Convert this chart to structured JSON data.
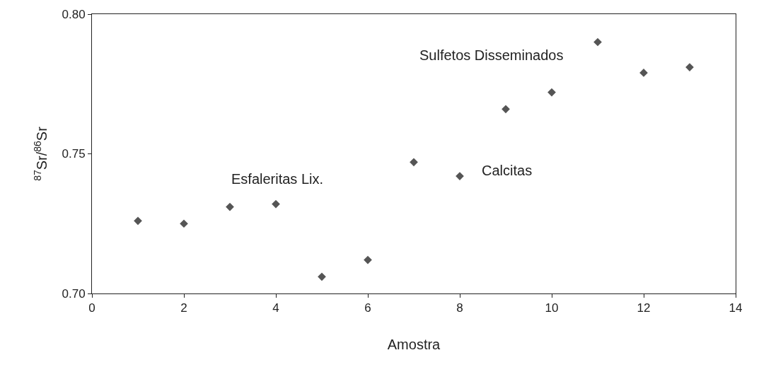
{
  "chart_data": {
    "type": "scatter",
    "xlabel": "Amostra",
    "ylabel": "$^{87}$Sr/$^{86}$Sr",
    "x": [
      1,
      2,
      3,
      4,
      5,
      6,
      7,
      8,
      9,
      10,
      11,
      12,
      13
    ],
    "series": [
      {
        "color": "#555555",
        "values": [
          0.726,
          0.725,
          0.731,
          0.732,
          0.706,
          0.712,
          0.747,
          0.742,
          0.766,
          0.772,
          0.79,
          0.779,
          0.781
        ]
      }
    ],
    "xlim": [
      0,
      14
    ],
    "xticks": [
      0,
      2,
      4,
      6,
      8,
      10,
      12,
      14
    ],
    "ylim": [
      0.7,
      0.8
    ],
    "yticks": [
      {
        "value": 0.7,
        "label": "0.70"
      },
      {
        "value": 0.75,
        "label": "0.75"
      },
      {
        "value": 0.8,
        "label": "0.80"
      }
    ],
    "annotations": [
      "Esfaleritas Lix.",
      "Calcitas",
      "Sulfetos Disseminados"
    ],
    "marker": "diamond"
  }
}
